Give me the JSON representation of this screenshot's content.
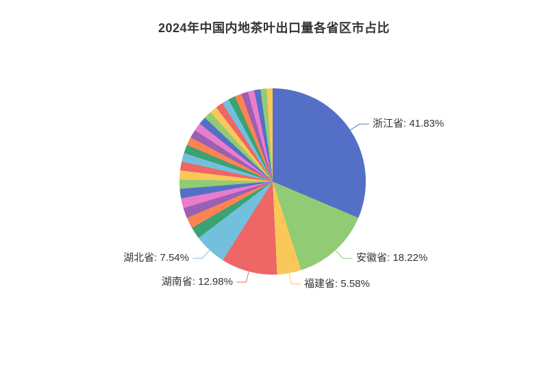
{
  "page": {
    "background_color": "#ffffff",
    "text_color": "#333333"
  },
  "chart_data": {
    "type": "pie",
    "title": "2024年中国内地茶叶出口量各省区市占比",
    "legend": "none",
    "labeled_slices": [
      {
        "name": "浙江省",
        "value_pct": 41.83,
        "label": "浙江省: 41.83%",
        "color": "#5470c6"
      },
      {
        "name": "安徽省",
        "value_pct": 18.22,
        "label": "安徽省: 18.22%",
        "color": "#91cc75"
      },
      {
        "name": "福建省",
        "value_pct": 5.58,
        "label": "福建省: 5.58%",
        "color": "#fac858"
      },
      {
        "name": "湖南省",
        "value_pct": 12.98,
        "label": "湖南省: 12.98%",
        "color": "#ee6666"
      },
      {
        "name": "湖北省",
        "value_pct": 7.54,
        "label": "湖北省: 7.54%",
        "color": "#73c0de"
      }
    ],
    "unlabeled_slices": {
      "count": 25,
      "values_pct_estimated": [
        2.75,
        2.55,
        2.36,
        2.28,
        2.2,
        2.13,
        2.08,
        2.05,
        2.01,
        1.96,
        1.93,
        1.89,
        1.85,
        1.81,
        1.76,
        1.73,
        1.69,
        1.66,
        1.61,
        1.58,
        1.53,
        1.49,
        1.46,
        1.41,
        1.38
      ],
      "palette_start_index": 5
    },
    "palette": [
      "#5470c6",
      "#91cc75",
      "#fac858",
      "#ee6666",
      "#73c0de",
      "#3ba272",
      "#fc8452",
      "#9a60b4",
      "#ea7ccc"
    ],
    "slice_order": "clockwise-from-top",
    "label_text_color": "#333333"
  }
}
